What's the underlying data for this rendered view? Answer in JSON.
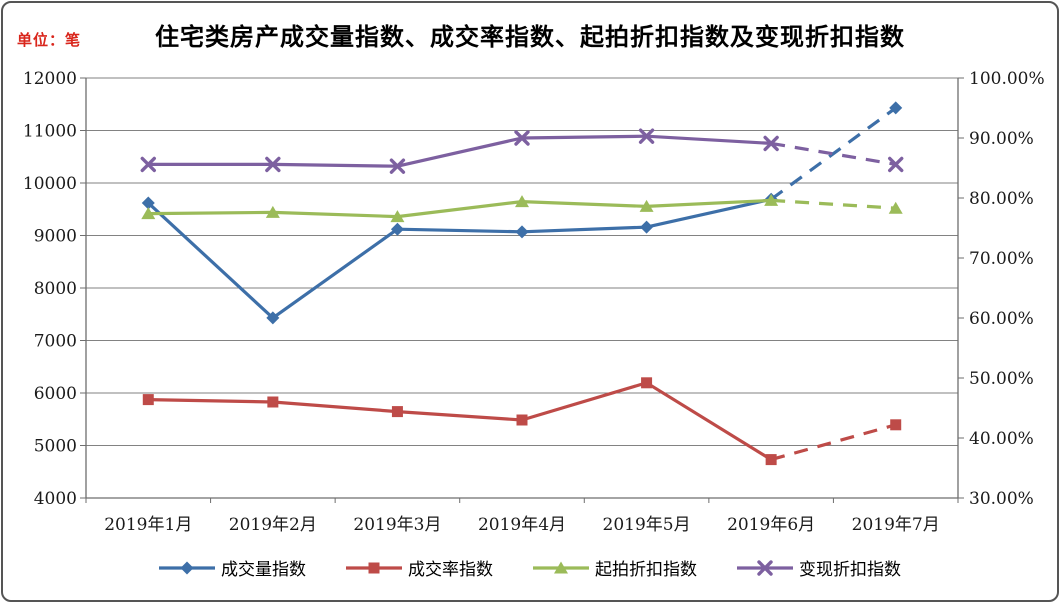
{
  "chart_data": {
    "type": "line",
    "title": "住宅类房产成交量指数、成交率指数、起拍折扣指数及变现折扣指数",
    "unit_label": "单位：笔",
    "unit_label_color": "#d9261c",
    "grid": true,
    "legend_position": "bottom",
    "categories": [
      "2019年1月",
      "2019年2月",
      "2019年3月",
      "2019年4月",
      "2019年5月",
      "2019年6月",
      "2019年7月"
    ],
    "left_axis": {
      "min": 4000,
      "max": 12000,
      "step": 1000,
      "tick_labels": [
        "12000",
        "11000",
        "10000",
        "9000",
        "8000",
        "7000",
        "6000",
        "5000",
        "4000"
      ]
    },
    "right_axis": {
      "min": 30,
      "max": 100,
      "step": 10,
      "tick_labels": [
        "100.00%",
        "90.00%",
        "80.00%",
        "70.00%",
        "60.00%",
        "50.00%",
        "40.00%",
        "30.00%"
      ]
    },
    "series": [
      {
        "name": "成交量指数",
        "axis": "left",
        "color": "#3D6FA8",
        "marker": "diamond",
        "values": [
          9620,
          7430,
          9120,
          9070,
          9160,
          9690,
          11430
        ],
        "dashed_segments": [
          5
        ]
      },
      {
        "name": "成交率指数",
        "axis": "right",
        "color": "#BE4B48",
        "marker": "square",
        "values": [
          46.4,
          46.0,
          44.4,
          43.0,
          49.2,
          36.4,
          42.2
        ],
        "dashed_segments": [
          5
        ]
      },
      {
        "name": "起拍折扣指数",
        "axis": "right",
        "color": "#9BBB59",
        "marker": "triangle",
        "values": [
          77.4,
          77.6,
          76.9,
          79.4,
          78.6,
          79.6,
          78.3
        ],
        "dashed_segments": [
          5
        ]
      },
      {
        "name": "变现折扣指数",
        "axis": "right",
        "color": "#7D60A0",
        "marker": "x",
        "values": [
          85.6,
          85.6,
          85.3,
          90.0,
          90.3,
          89.1,
          85.6
        ],
        "dashed_segments": [
          5
        ]
      }
    ],
    "colors": {
      "gridline": "#828282",
      "axis_line": "#6e6e6e",
      "tick_text": "#1a1a1a"
    }
  }
}
